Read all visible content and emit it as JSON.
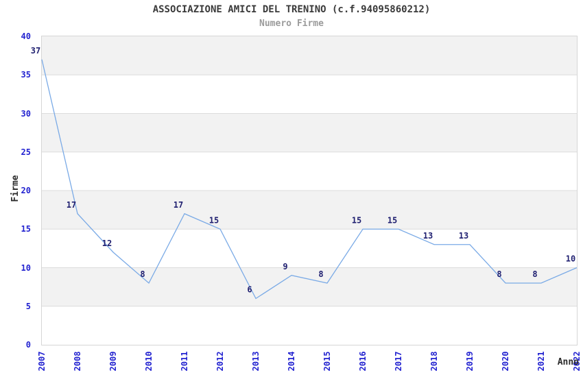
{
  "chart_data": {
    "type": "line",
    "title": "ASSOCIAZIONE AMICI DEL TRENINO (c.f.94095860212)",
    "subtitle": "Numero Firme",
    "xlabel": "Anno",
    "ylabel": "Firme",
    "categories": [
      "2007",
      "2008",
      "2009",
      "2010",
      "2011",
      "2012",
      "2013",
      "2014",
      "2015",
      "2016",
      "2017",
      "2018",
      "2019",
      "2020",
      "2021",
      "2022"
    ],
    "values": [
      37,
      17,
      12,
      8,
      17,
      15,
      6,
      9,
      8,
      15,
      15,
      13,
      13,
      8,
      8,
      10
    ],
    "ylim": [
      0,
      40
    ],
    "yticks": [
      0,
      5,
      10,
      15,
      20,
      25,
      30,
      35,
      40
    ],
    "grid": "horizontal-bands-alternating",
    "legend": "none",
    "point_markers": false,
    "data_labels": true,
    "colors": {
      "line": "#7aaae6",
      "point_label": "#1f1f70",
      "axis_tick_label": "#2222d0",
      "band_gray": "#f2f2f2",
      "band_white": "#ffffff",
      "gridline": "#dcdcdc",
      "plot_border": "#d6d6d6",
      "title": "#3a3a3a",
      "subtitle": "#9b9b9b",
      "axis_title": "#2a2a2a"
    }
  }
}
